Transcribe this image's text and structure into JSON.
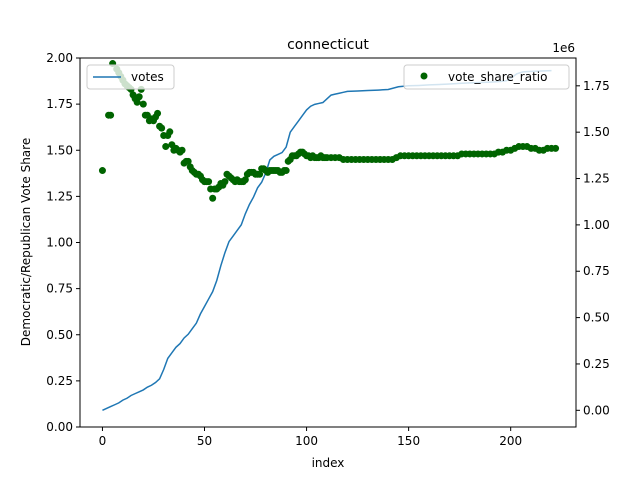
{
  "chart_data": {
    "type": "line+scatter",
    "title": "connecticut",
    "xlabel": "index",
    "ylabel_left": "Democratic/Republican Vote Share",
    "ylabel_right": "",
    "right_axis_offset_text": "1e6",
    "xlim": [
      -11,
      232
    ],
    "ylim_left": [
      0,
      2.0
    ],
    "ylim_right": [
      -90000,
      1900000
    ],
    "x_ticks": [
      0,
      50,
      100,
      150,
      200
    ],
    "y_ticks_left": [
      0.0,
      0.25,
      0.5,
      0.75,
      1.0,
      1.25,
      1.5,
      1.75,
      2.0
    ],
    "y_tick_labels_left": [
      "0.00",
      "0.25",
      "0.50",
      "0.75",
      "1.00",
      "1.25",
      "1.50",
      "1.75",
      "2.00"
    ],
    "y_ticks_right": [
      0,
      250000,
      500000,
      750000,
      1000000,
      1250000,
      1500000,
      1750000
    ],
    "y_tick_labels_right": [
      "0.00",
      "0.25",
      "0.50",
      "0.75",
      "1.00",
      "1.25",
      "1.50",
      "1.75"
    ],
    "grid": false,
    "series": [
      {
        "name": "votes",
        "kind": "line",
        "axis": "right",
        "color": "#1f77b4",
        "legend_position": "upper-left",
        "points": [
          [
            0,
            0
          ],
          [
            2,
            10000
          ],
          [
            4,
            20000
          ],
          [
            6,
            30000
          ],
          [
            8,
            40000
          ],
          [
            10,
            55000
          ],
          [
            12,
            65000
          ],
          [
            14,
            80000
          ],
          [
            16,
            90000
          ],
          [
            18,
            100000
          ],
          [
            20,
            110000
          ],
          [
            22,
            125000
          ],
          [
            24,
            135000
          ],
          [
            26,
            150000
          ],
          [
            28,
            170000
          ],
          [
            30,
            220000
          ],
          [
            32,
            280000
          ],
          [
            34,
            310000
          ],
          [
            36,
            340000
          ],
          [
            38,
            360000
          ],
          [
            40,
            390000
          ],
          [
            42,
            410000
          ],
          [
            44,
            440000
          ],
          [
            46,
            470000
          ],
          [
            48,
            520000
          ],
          [
            50,
            560000
          ],
          [
            52,
            600000
          ],
          [
            54,
            640000
          ],
          [
            56,
            700000
          ],
          [
            58,
            780000
          ],
          [
            60,
            850000
          ],
          [
            62,
            910000
          ],
          [
            64,
            940000
          ],
          [
            66,
            970000
          ],
          [
            68,
            1000000
          ],
          [
            70,
            1060000
          ],
          [
            72,
            1110000
          ],
          [
            74,
            1150000
          ],
          [
            76,
            1200000
          ],
          [
            78,
            1230000
          ],
          [
            80,
            1280000
          ],
          [
            82,
            1350000
          ],
          [
            84,
            1370000
          ],
          [
            86,
            1380000
          ],
          [
            88,
            1390000
          ],
          [
            90,
            1420000
          ],
          [
            92,
            1500000
          ],
          [
            94,
            1530000
          ],
          [
            96,
            1560000
          ],
          [
            98,
            1590000
          ],
          [
            100,
            1620000
          ],
          [
            102,
            1640000
          ],
          [
            104,
            1650000
          ],
          [
            106,
            1655000
          ],
          [
            108,
            1660000
          ],
          [
            110,
            1680000
          ],
          [
            112,
            1700000
          ],
          [
            114,
            1705000
          ],
          [
            116,
            1710000
          ],
          [
            118,
            1715000
          ],
          [
            120,
            1720000
          ],
          [
            125,
            1722000
          ],
          [
            130,
            1725000
          ],
          [
            135,
            1727000
          ],
          [
            140,
            1730000
          ],
          [
            145,
            1745000
          ],
          [
            150,
            1750000
          ],
          [
            155,
            1752000
          ],
          [
            160,
            1755000
          ],
          [
            165,
            1757000
          ],
          [
            170,
            1760000
          ],
          [
            175,
            1763000
          ],
          [
            180,
            1766000
          ],
          [
            185,
            1768000
          ],
          [
            190,
            1770000
          ],
          [
            195,
            1773000
          ],
          [
            198,
            1778000
          ],
          [
            200,
            1790000
          ],
          [
            203,
            1815000
          ],
          [
            206,
            1825000
          ],
          [
            210,
            1828000
          ],
          [
            215,
            1830000
          ],
          [
            220,
            1832000
          ]
        ]
      },
      {
        "name": "vote_share_ratio",
        "kind": "scatter",
        "axis": "left",
        "color": "#006400",
        "legend_position": "upper-right",
        "points": [
          [
            0,
            1.39
          ],
          [
            3,
            1.69
          ],
          [
            4,
            1.69
          ],
          [
            5,
            1.97
          ],
          [
            7,
            1.94
          ],
          [
            8,
            1.92
          ],
          [
            9,
            1.9
          ],
          [
            10,
            1.88
          ],
          [
            11,
            1.86
          ],
          [
            12,
            1.85
          ],
          [
            13,
            1.84
          ],
          [
            14,
            1.83
          ],
          [
            15,
            1.8
          ],
          [
            16,
            1.78
          ],
          [
            17,
            1.76
          ],
          [
            18,
            1.79
          ],
          [
            19,
            1.83
          ],
          [
            20,
            1.75
          ],
          [
            21,
            1.69
          ],
          [
            22,
            1.69
          ],
          [
            23,
            1.66
          ],
          [
            24,
            1.67
          ],
          [
            25,
            1.66
          ],
          [
            26,
            1.68
          ],
          [
            27,
            1.7
          ],
          [
            28,
            1.63
          ],
          [
            29,
            1.62
          ],
          [
            30,
            1.58
          ],
          [
            31,
            1.52
          ],
          [
            32,
            1.58
          ],
          [
            33,
            1.6
          ],
          [
            34,
            1.53
          ],
          [
            35,
            1.5
          ],
          [
            36,
            1.51
          ],
          [
            37,
            1.5
          ],
          [
            38,
            1.49
          ],
          [
            39,
            1.5
          ],
          [
            40,
            1.43
          ],
          [
            41,
            1.44
          ],
          [
            42,
            1.44
          ],
          [
            43,
            1.41
          ],
          [
            44,
            1.39
          ],
          [
            45,
            1.38
          ],
          [
            46,
            1.37
          ],
          [
            47,
            1.37
          ],
          [
            48,
            1.36
          ],
          [
            49,
            1.34
          ],
          [
            50,
            1.33
          ],
          [
            51,
            1.33
          ],
          [
            52,
            1.33
          ],
          [
            53,
            1.29
          ],
          [
            54,
            1.24
          ],
          [
            55,
            1.29
          ],
          [
            56,
            1.29
          ],
          [
            57,
            1.3
          ],
          [
            58,
            1.32
          ],
          [
            59,
            1.31
          ],
          [
            60,
            1.33
          ],
          [
            61,
            1.37
          ],
          [
            62,
            1.36
          ],
          [
            63,
            1.35
          ],
          [
            64,
            1.34
          ],
          [
            65,
            1.33
          ],
          [
            66,
            1.34
          ],
          [
            67,
            1.33
          ],
          [
            68,
            1.33
          ],
          [
            69,
            1.33
          ],
          [
            70,
            1.34
          ],
          [
            71,
            1.37
          ],
          [
            72,
            1.38
          ],
          [
            73,
            1.38
          ],
          [
            74,
            1.38
          ],
          [
            75,
            1.37
          ],
          [
            76,
            1.37
          ],
          [
            77,
            1.37
          ],
          [
            78,
            1.4
          ],
          [
            79,
            1.4
          ],
          [
            80,
            1.39
          ],
          [
            81,
            1.38
          ],
          [
            82,
            1.39
          ],
          [
            83,
            1.39
          ],
          [
            84,
            1.39
          ],
          [
            85,
            1.39
          ],
          [
            86,
            1.39
          ],
          [
            87,
            1.38
          ],
          [
            88,
            1.38
          ],
          [
            89,
            1.39
          ],
          [
            90,
            1.39
          ],
          [
            91,
            1.44
          ],
          [
            92,
            1.45
          ],
          [
            93,
            1.47
          ],
          [
            94,
            1.47
          ],
          [
            95,
            1.47
          ],
          [
            96,
            1.48
          ],
          [
            97,
            1.49
          ],
          [
            98,
            1.49
          ],
          [
            99,
            1.48
          ],
          [
            100,
            1.47
          ],
          [
            101,
            1.47
          ],
          [
            102,
            1.46
          ],
          [
            103,
            1.47
          ],
          [
            104,
            1.46
          ],
          [
            105,
            1.46
          ],
          [
            106,
            1.46
          ],
          [
            107,
            1.47
          ],
          [
            108,
            1.46
          ],
          [
            109,
            1.46
          ],
          [
            110,
            1.46
          ],
          [
            112,
            1.46
          ],
          [
            114,
            1.46
          ],
          [
            116,
            1.46
          ],
          [
            118,
            1.45
          ],
          [
            120,
            1.45
          ],
          [
            122,
            1.45
          ],
          [
            124,
            1.45
          ],
          [
            126,
            1.45
          ],
          [
            128,
            1.45
          ],
          [
            130,
            1.45
          ],
          [
            132,
            1.45
          ],
          [
            134,
            1.45
          ],
          [
            136,
            1.45
          ],
          [
            138,
            1.45
          ],
          [
            140,
            1.45
          ],
          [
            142,
            1.45
          ],
          [
            144,
            1.46
          ],
          [
            146,
            1.47
          ],
          [
            148,
            1.47
          ],
          [
            150,
            1.47
          ],
          [
            152,
            1.47
          ],
          [
            154,
            1.47
          ],
          [
            156,
            1.47
          ],
          [
            158,
            1.47
          ],
          [
            160,
            1.47
          ],
          [
            162,
            1.47
          ],
          [
            164,
            1.47
          ],
          [
            166,
            1.47
          ],
          [
            168,
            1.47
          ],
          [
            170,
            1.47
          ],
          [
            172,
            1.47
          ],
          [
            174,
            1.47
          ],
          [
            176,
            1.48
          ],
          [
            178,
            1.48
          ],
          [
            180,
            1.48
          ],
          [
            182,
            1.48
          ],
          [
            184,
            1.48
          ],
          [
            186,
            1.48
          ],
          [
            188,
            1.48
          ],
          [
            190,
            1.48
          ],
          [
            192,
            1.48
          ],
          [
            194,
            1.49
          ],
          [
            196,
            1.49
          ],
          [
            198,
            1.5
          ],
          [
            200,
            1.5
          ],
          [
            202,
            1.51
          ],
          [
            204,
            1.52
          ],
          [
            206,
            1.52
          ],
          [
            208,
            1.52
          ],
          [
            210,
            1.51
          ],
          [
            212,
            1.51
          ],
          [
            214,
            1.5
          ],
          [
            216,
            1.5
          ],
          [
            218,
            1.51
          ],
          [
            220,
            1.51
          ],
          [
            222,
            1.51
          ]
        ]
      }
    ]
  }
}
